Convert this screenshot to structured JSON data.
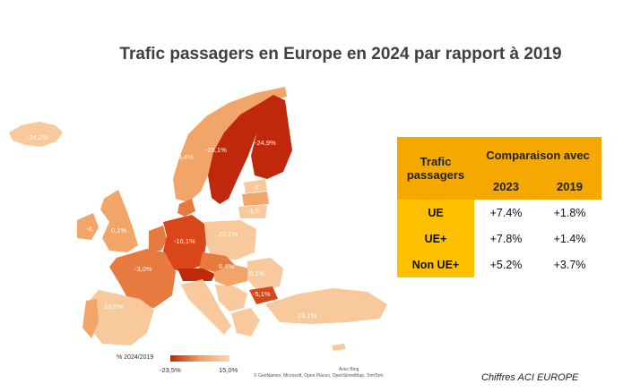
{
  "title": "Trafic passagers en Europe en 2024 par rapport à 2019",
  "colors": {
    "darkest": "#c0280c",
    "dark": "#d8461a",
    "mid": "#e77a3e",
    "light": "#f2a569",
    "lightest": "#f8c99d",
    "header_orange": "#f5a800",
    "row_orange": "#ffc000"
  },
  "map": {
    "region_labels": [
      {
        "id": "iceland",
        "text": "-24,2%"
      },
      {
        "id": "norway",
        "text": "-4,4%"
      },
      {
        "id": "sweden",
        "text": "-23,1%"
      },
      {
        "id": "finland",
        "text": "-24,9%"
      },
      {
        "id": "estonia",
        "text": "-7"
      },
      {
        "id": "latvia",
        "text": "-1,6"
      },
      {
        "id": "ireland",
        "text": "-8,"
      },
      {
        "id": "uk",
        "text": "0,1%"
      },
      {
        "id": "germany",
        "text": "-16,1%"
      },
      {
        "id": "poland",
        "text": "22,1%"
      },
      {
        "id": "france",
        "text": "-3,0%"
      },
      {
        "id": "hungary",
        "text": "6,4%"
      },
      {
        "id": "romania",
        "text": "8,1%"
      },
      {
        "id": "bulgaria",
        "text": "-5,1%"
      },
      {
        "id": "spain",
        "text": "13,0%"
      },
      {
        "id": "turkey",
        "text": "23,1%"
      }
    ]
  },
  "legend": {
    "title": "% 2024/2019",
    "min_label": "-23,5%",
    "max_label": "15,0%",
    "min_value": -23.5,
    "max_value": 15.0
  },
  "attribution": {
    "bing": "Avec Bing",
    "credits": "© GeoNames, Microsoft, Open Places, OpenStreetMap, TomTom"
  },
  "table": {
    "corner_label": "Trafic passagers",
    "group_header": "Comparaison avec",
    "columns": [
      "2023",
      "2019"
    ],
    "rows": [
      {
        "label": "UE",
        "values": [
          "+7.4%",
          "+1.8%"
        ]
      },
      {
        "label": "UE+",
        "values": [
          "+7.8%",
          "+1.4%"
        ]
      },
      {
        "label": "Non UE+",
        "values": [
          "+5.2%",
          "+3.7%"
        ]
      }
    ]
  },
  "source_note": "Chiffres ACI EUROPE"
}
